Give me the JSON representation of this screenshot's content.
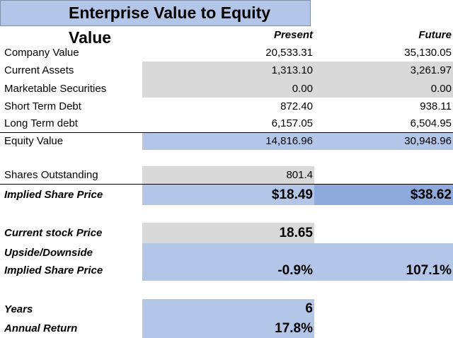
{
  "title": "Enterprise Value to Equity Value",
  "headers": {
    "present": "Present",
    "future": "Future"
  },
  "rows": [
    {
      "label": "Company Value",
      "present": "20,533.31",
      "future": "35,130.05"
    },
    {
      "label": "Current Assets",
      "present": "1,313.10",
      "future": "3,261.97"
    },
    {
      "label": "Marketable Securities",
      "present": "0.00",
      "future": "0.00"
    },
    {
      "label": "Short Term Debt",
      "present": "872.40",
      "future": "938.11"
    },
    {
      "label": "Long Term debt",
      "present": "6,157.05",
      "future": "6,504.95"
    },
    {
      "label": "Equity Value",
      "present": "14,816.96",
      "future": "30,948.96"
    }
  ],
  "shares": {
    "label": "Shares Outstanding",
    "value": "801.4"
  },
  "implied": {
    "label": "Implied Share Price",
    "present": "$18.49",
    "future": "$38.62"
  },
  "current": {
    "label": "Current stock Price",
    "value": "18.65"
  },
  "upside": {
    "label1": "Upside/Downside",
    "label2": "Implied Share Price",
    "present": "-0.9%",
    "future": "107.1%"
  },
  "years": {
    "label": "Years",
    "value": "6"
  },
  "annual": {
    "label": "Annual Return",
    "value": "17.8%"
  }
}
